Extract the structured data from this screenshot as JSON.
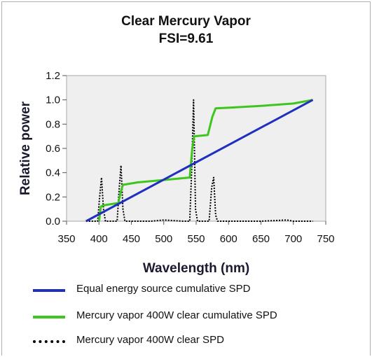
{
  "chart_data": {
    "type": "line",
    "title": "Clear Mercury Vapor",
    "subtitle": "FSI=9.61",
    "xlabel": "Wavelength (nm)",
    "ylabel": "Relative power",
    "xlim": [
      350,
      750
    ],
    "ylim": [
      0,
      1.2
    ],
    "x_ticks": [
      "350",
      "400",
      "450",
      "500",
      "550",
      "600",
      "650",
      "700",
      "750"
    ],
    "y_ticks": [
      "0.0",
      "0.2",
      "0.4",
      "0.6",
      "0.8",
      "1.0",
      "1.2"
    ],
    "grid": false,
    "legend_position": "bottom",
    "series": [
      {
        "name": "Equal energy source cumulative SPD",
        "color": "#1f2fbf",
        "style": "solid",
        "x": [
          380,
          730
        ],
        "y": [
          0.0,
          1.0
        ]
      },
      {
        "name": "Mercury vapor 400W clear cumulative SPD",
        "color": "#3ec61f",
        "style": "solid",
        "x": [
          400,
          403,
          406,
          430,
          434,
          437,
          460,
          500,
          540,
          544,
          547,
          568,
          575,
          580,
          600,
          650,
          700,
          730
        ],
        "y": [
          0.0,
          0.12,
          0.13,
          0.15,
          0.25,
          0.3,
          0.32,
          0.34,
          0.36,
          0.6,
          0.7,
          0.71,
          0.86,
          0.93,
          0.935,
          0.95,
          0.97,
          1.0
        ]
      },
      {
        "name": "Mercury vapor 400W clear SPD",
        "color": "#000000",
        "style": "dotted",
        "x": [
          380,
          398,
          401,
          404,
          407,
          410,
          420,
          428,
          431,
          434,
          437,
          440,
          450,
          480,
          500,
          530,
          540,
          543,
          546,
          549,
          552,
          560,
          570,
          574,
          577,
          580,
          583,
          590,
          600,
          650,
          690,
          700,
          730
        ],
        "y": [
          0.0,
          0.0,
          0.2,
          0.36,
          0.1,
          0.0,
          0.0,
          0.0,
          0.25,
          0.46,
          0.1,
          0.0,
          0.0,
          0.0,
          0.01,
          0.0,
          0.0,
          0.4,
          1.0,
          0.1,
          0.0,
          0.0,
          0.0,
          0.28,
          0.36,
          0.05,
          0.0,
          0.0,
          0.0,
          0.0,
          0.01,
          0.0,
          0.0
        ]
      }
    ]
  }
}
